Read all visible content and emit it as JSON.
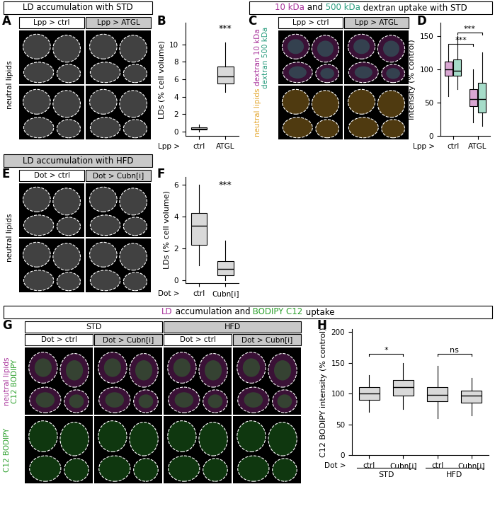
{
  "panels": [
    {
      "label": "A",
      "header": [
        {
          "text": "LD accumulation with STD",
          "color": "#000000"
        }
      ],
      "shaded": false,
      "columns": [
        "Lpp > ctrl",
        "Lpp > ATGL"
      ],
      "row_labels": [
        {
          "lines": [
            {
              "text": "neutral lipids",
              "color": "#000000"
            }
          ],
          "span": 2
        }
      ]
    },
    {
      "label": "C",
      "header": [
        {
          "text": "10 kDa",
          "color": "#a8329b"
        },
        {
          "text": " and",
          "color": "#000000"
        },
        {
          "text": " 500 kDa",
          "color": "#2a9d7f"
        },
        {
          "text": " dextran uptake with STD",
          "color": "#000000"
        }
      ],
      "shaded": false,
      "columns": [
        "Lpp > ctrl",
        "Lpp > ATGL"
      ],
      "row_labels": [
        {
          "lines": [
            {
              "text": "dextran 10 kDa",
              "color": "#a8329b"
            },
            {
              "text": "dextran 500 kDa",
              "color": "#2a9d7f"
            }
          ],
          "span": 1
        },
        {
          "lines": [
            {
              "text": "neutral lipids",
              "color": "#e3a72f"
            }
          ],
          "span": 1
        }
      ]
    },
    {
      "label": "E",
      "header": [
        {
          "text": "LD accumulation with HFD",
          "color": "#000000"
        }
      ],
      "shaded": true,
      "columns": [
        "Dot > ctrl",
        "Dot > Cubn[i]"
      ],
      "row_labels": [
        {
          "lines": [
            {
              "text": "neutral lipids",
              "color": "#000000"
            }
          ],
          "span": 2
        }
      ]
    },
    {
      "label": "G",
      "header": [
        {
          "text": "LD",
          "color": "#a8329b"
        },
        {
          "text": " accumulation and",
          "color": "#000000"
        },
        {
          "text": " BODIPY C12",
          "color": "#2ca02c"
        },
        {
          "text": " uptake",
          "color": "#000000"
        }
      ],
      "shaded": false,
      "conditions": [
        "STD",
        "HFD"
      ],
      "columns": [
        "Dot > ctrl",
        "Dot > Cubn[i]",
        "Dot > ctrl",
        "Dot > Cubn[i]"
      ],
      "row_labels": [
        {
          "lines": [
            {
              "text": "neutral lipids",
              "color": "#a8329b"
            },
            {
              "text": "C12 BODIPY",
              "color": "#2ca02c"
            }
          ],
          "span": 1
        },
        {
          "lines": [
            {
              "text": "C12 BODIPY",
              "color": "#2ca02c"
            }
          ],
          "span": 1
        }
      ]
    }
  ],
  "chart_data": [
    {
      "panel": "B",
      "type": "box",
      "ylabel": "LDs (% cell volume)",
      "xlabel": "Lpp >",
      "categories": [
        "ctrl",
        "ATGL"
      ],
      "ylim": [
        -0.5,
        12.5
      ],
      "yticks": [
        0,
        2,
        4,
        6,
        8,
        10
      ],
      "series": [
        {
          "color": "#d9d9d9",
          "values": [
            {
              "min": 0,
              "q1": 0.2,
              "median": 0.3,
              "q3": 0.45,
              "max": 0.8
            },
            {
              "min": 4.5,
              "q1": 5.5,
              "median": 6.3,
              "q3": 7.5,
              "max": 10.2
            }
          ]
        }
      ],
      "annotations": [
        {
          "text": "***",
          "x": 1,
          "y": 11.3
        }
      ]
    },
    {
      "panel": "D",
      "type": "box",
      "ylabel": "Intensity (% control)",
      "xlabel": "Lpp >",
      "categories": [
        "ctrl",
        "ATGL"
      ],
      "ylim": [
        0,
        170
      ],
      "yticks": [
        0,
        50,
        100,
        150
      ],
      "series": [
        {
          "color": "#d9a6d2",
          "values": [
            {
              "min": 60,
              "q1": 90,
              "median": 100,
              "q3": 112,
              "max": 135
            },
            {
              "min": 20,
              "q1": 45,
              "median": 55,
              "q3": 70,
              "max": 100
            }
          ]
        },
        {
          "color": "#a6dcc9",
          "values": [
            {
              "min": 70,
              "q1": 90,
              "median": 98,
              "q3": 115,
              "max": 150
            },
            {
              "min": 15,
              "q1": 35,
              "median": 55,
              "q3": 80,
              "max": 125
            }
          ]
        }
      ],
      "brackets": [
        {
          "text": "***",
          "from": 0,
          "to": 1,
          "series": 0,
          "y": 138
        },
        {
          "text": "***",
          "from": 0,
          "to": 1,
          "series": 1,
          "y": 155
        }
      ]
    },
    {
      "panel": "F",
      "type": "box",
      "ylabel": "LDs (% cell volume)",
      "xlabel": "Dot >",
      "categories": [
        "ctrl",
        "Cubn[i]"
      ],
      "ylim": [
        -0.2,
        6.5
      ],
      "yticks": [
        0,
        2,
        4,
        6
      ],
      "series": [
        {
          "color": "#d9d9d9",
          "values": [
            {
              "min": 0.9,
              "q1": 2.2,
              "median": 3.4,
              "q3": 4.2,
              "max": 6
            },
            {
              "min": 0,
              "q1": 0.3,
              "median": 0.7,
              "q3": 1.2,
              "max": 2.5
            }
          ]
        }
      ],
      "annotations": [
        {
          "text": "***",
          "x": 1,
          "y": 5.7
        }
      ]
    },
    {
      "panel": "H",
      "type": "box",
      "ylabel": "C12 BODIPY intensity (% control)",
      "xlabel": "Dot >",
      "categories": [
        "ctrl",
        "Cubn[i]",
        "ctrl",
        "Cubn[i]"
      ],
      "ylim": [
        0,
        205
      ],
      "yticks": [
        0,
        50,
        100,
        150,
        200
      ],
      "groups": [
        {
          "label": "STD",
          "size": 2
        },
        {
          "label": "HFD",
          "size": 2
        }
      ],
      "series": [
        {
          "color": "#d9d9d9",
          "values": [
            {
              "min": 70,
              "q1": 90,
              "median": 100,
              "q3": 110,
              "max": 130
            },
            {
              "min": 75,
              "q1": 97,
              "median": 110,
              "q3": 122,
              "max": 150
            },
            {
              "min": 60,
              "q1": 87,
              "median": 98,
              "q3": 110,
              "max": 145
            },
            {
              "min": 65,
              "q1": 85,
              "median": 97,
              "q3": 105,
              "max": 125
            }
          ]
        }
      ],
      "brackets": [
        {
          "text": "*",
          "from": 0,
          "to": 1,
          "y": 165
        },
        {
          "text": "ns",
          "from": 2,
          "to": 3,
          "y": 165
        }
      ]
    }
  ]
}
